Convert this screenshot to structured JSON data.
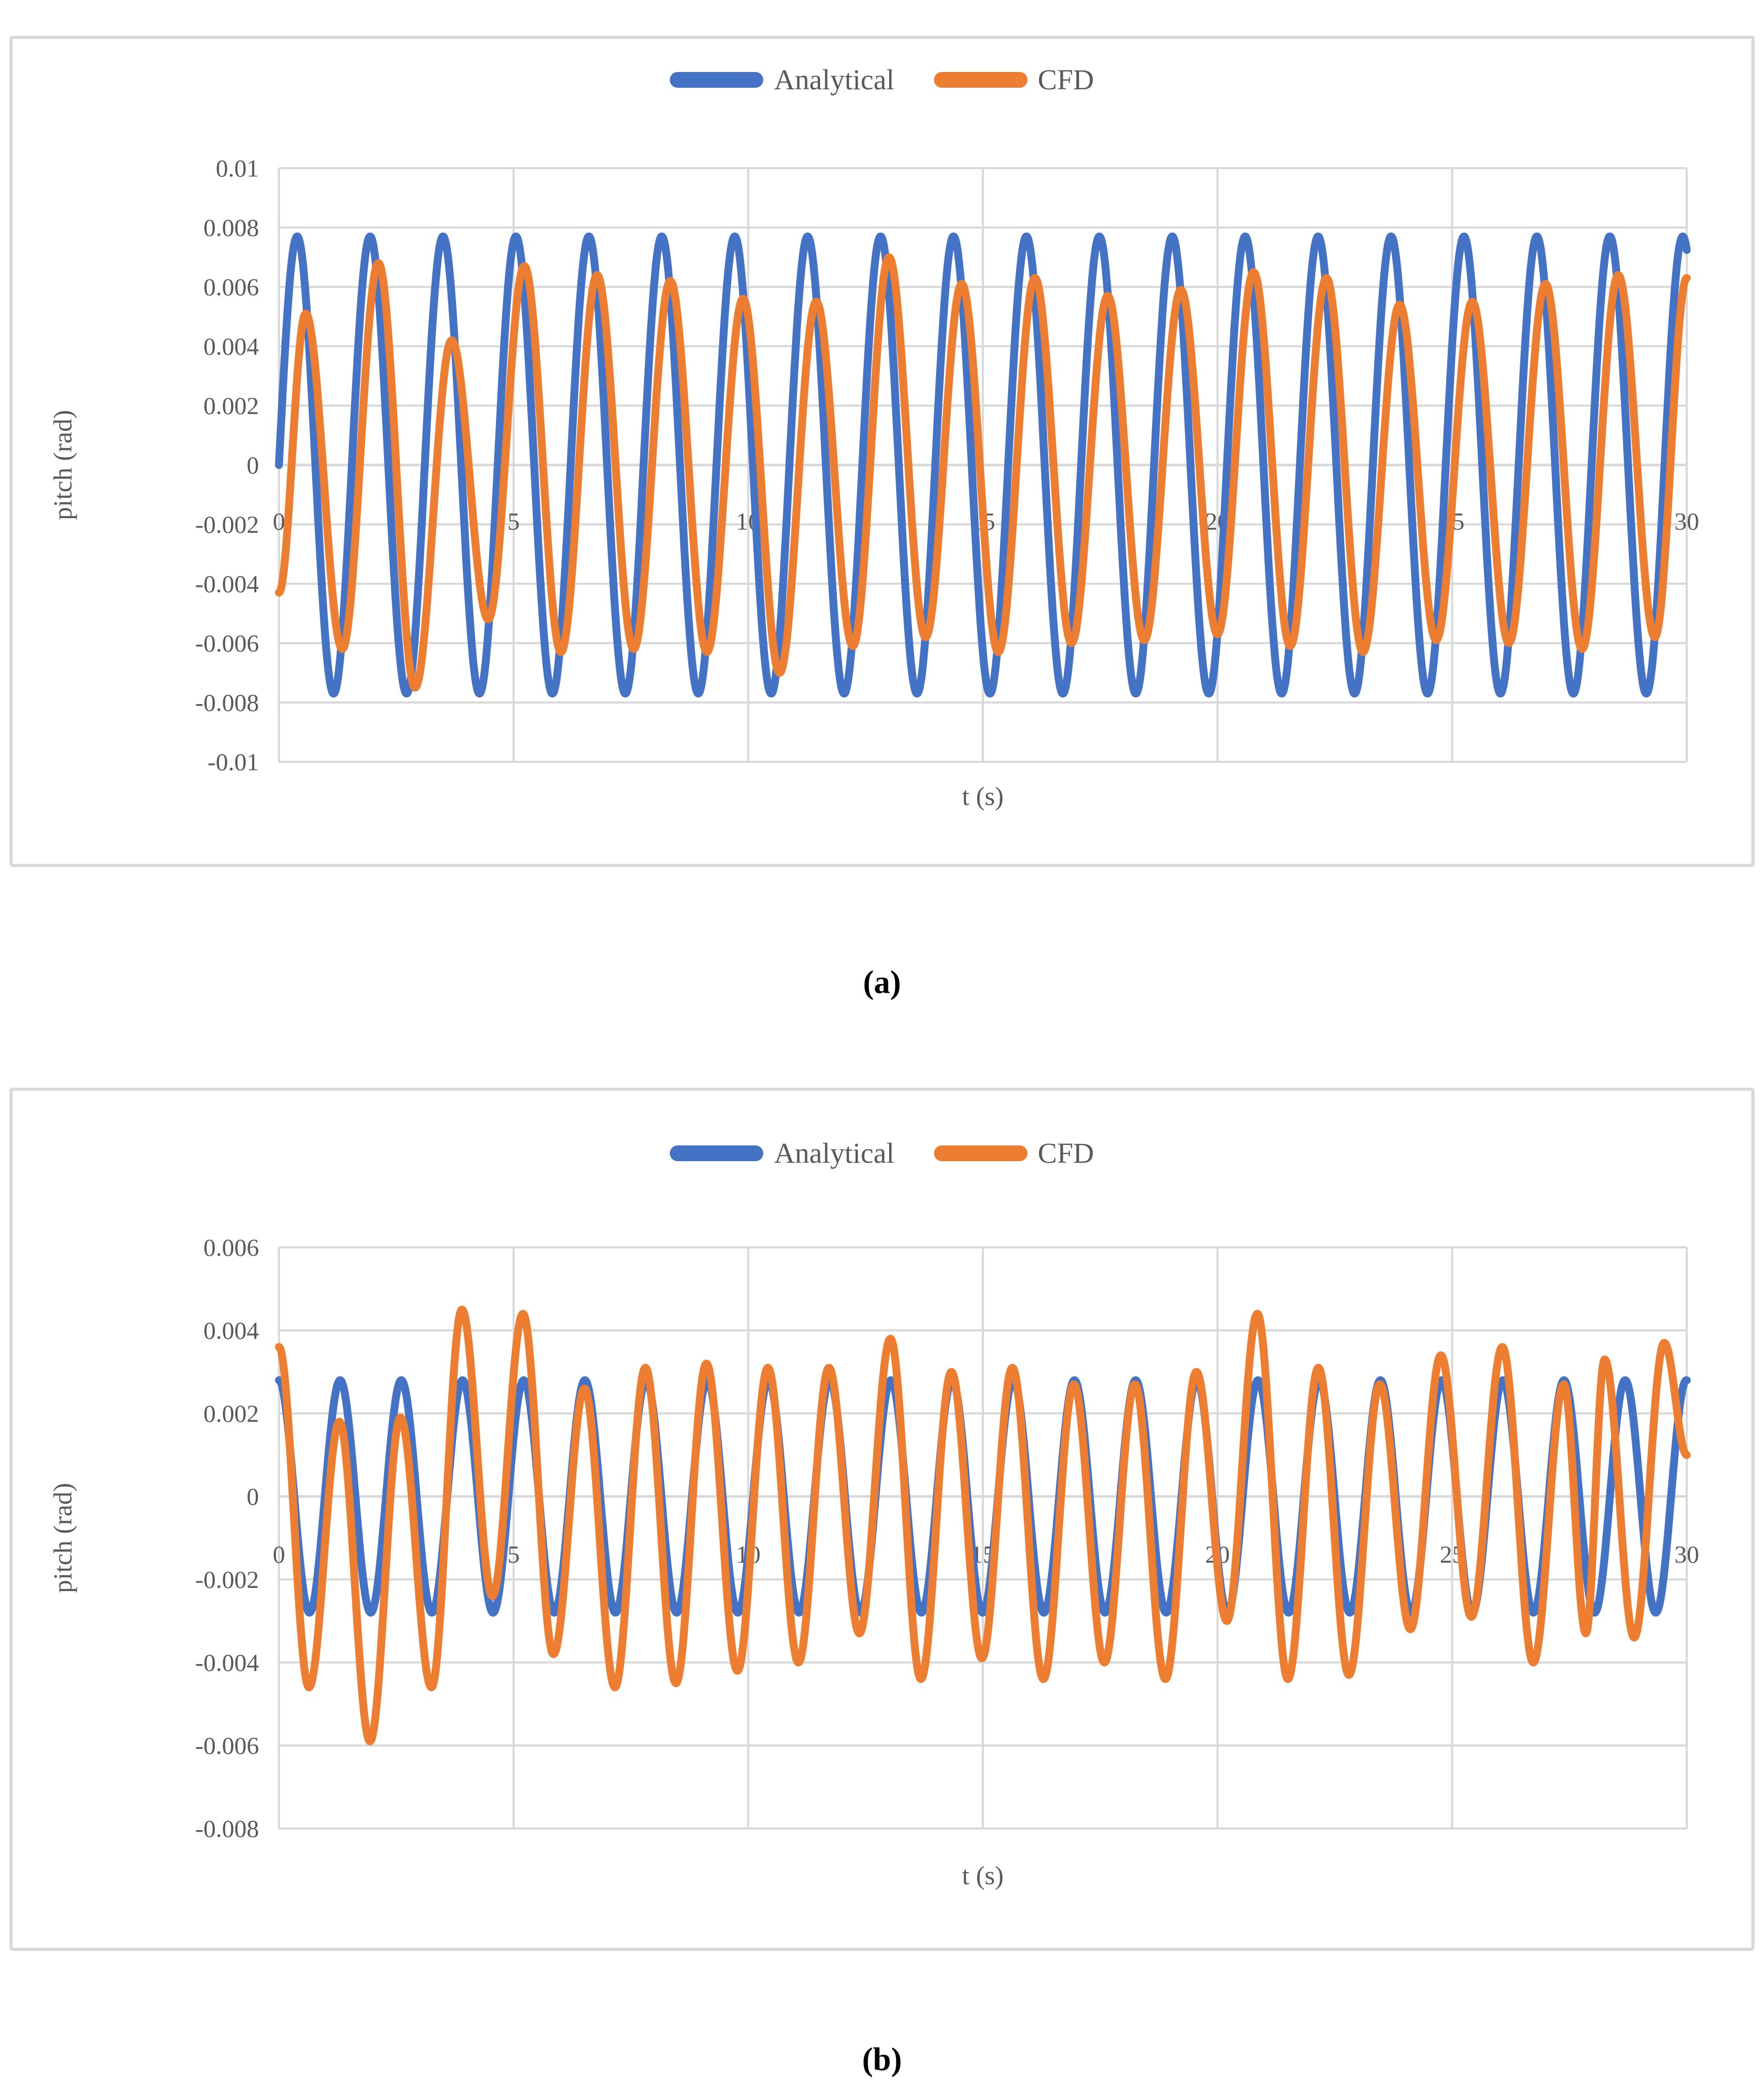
{
  "colors": {
    "analytical": "#4472C4",
    "cfd": "#ED7D31",
    "grid": "#D9D9D9",
    "axis_text": "#595959",
    "caption_text": "#000000",
    "chart_border": "#D9D9D9"
  },
  "legend": {
    "items": [
      {
        "label": "Analytical",
        "color_key": "analytical"
      },
      {
        "label": "CFD",
        "color_key": "cfd"
      }
    ]
  },
  "captions": {
    "a": "(a)",
    "b": "(b)"
  },
  "chart_data": [
    {
      "id": "a",
      "type": "line",
      "title": "",
      "xlabel": "t (s)",
      "ylabel": "pitch (rad)",
      "grid": true,
      "legend_position": "top",
      "x_axis": {
        "min": 0,
        "max": 30,
        "tick_step": 5,
        "tick_labels": [
          "0",
          "5",
          "10",
          "15",
          "20",
          "25",
          "30"
        ]
      },
      "y_axis": {
        "min": -0.01,
        "max": 0.01,
        "tick_step": 0.002,
        "tick_labels": [
          "0.01",
          "0.008",
          "0.006",
          "0.004",
          "0.002",
          "0",
          "-0.002",
          "-0.004",
          "-0.006",
          "-0.008",
          "-0.01"
        ]
      },
      "series": [
        {
          "name": "Analytical",
          "color_key": "analytical",
          "model": "sine",
          "amplitude": 0.0077,
          "period": 1.554,
          "peak_time": 0.3885
        },
        {
          "name": "CFD",
          "color_key": "cfd",
          "model": "extrema",
          "points": [
            [
              0,
              -0.0043
            ],
            [
              0.57,
              0.0051
            ],
            [
              1.35,
              -0.0062
            ],
            [
              2.12,
              0.0068
            ],
            [
              2.9,
              -0.0075
            ],
            [
              3.68,
              0.0042
            ],
            [
              4.46,
              -0.0052
            ],
            [
              5.23,
              0.0067
            ],
            [
              6.01,
              -0.0063
            ],
            [
              6.78,
              0.0064
            ],
            [
              7.56,
              -0.0062
            ],
            [
              8.34,
              0.0062
            ],
            [
              9.12,
              -0.0063
            ],
            [
              9.89,
              0.0056
            ],
            [
              10.67,
              -0.007
            ],
            [
              11.45,
              0.0055
            ],
            [
              12.23,
              -0.0061
            ],
            [
              13.0,
              0.007
            ],
            [
              13.78,
              -0.0058
            ],
            [
              14.55,
              0.0061
            ],
            [
              15.33,
              -0.0063
            ],
            [
              16.11,
              0.0063
            ],
            [
              16.89,
              -0.006
            ],
            [
              17.66,
              0.0057
            ],
            [
              18.44,
              -0.0059
            ],
            [
              19.22,
              0.0059
            ],
            [
              20.0,
              -0.0057
            ],
            [
              20.77,
              0.0065
            ],
            [
              21.55,
              -0.0061
            ],
            [
              22.32,
              0.0063
            ],
            [
              23.1,
              -0.0063
            ],
            [
              23.88,
              0.0054
            ],
            [
              24.66,
              -0.0059
            ],
            [
              25.43,
              0.0055
            ],
            [
              26.21,
              -0.006
            ],
            [
              26.99,
              0.0061
            ],
            [
              27.77,
              -0.0062
            ],
            [
              28.54,
              0.0064
            ],
            [
              29.32,
              -0.0058
            ],
            [
              30,
              0.0063
            ]
          ]
        }
      ]
    },
    {
      "id": "b",
      "type": "line",
      "title": "",
      "xlabel": "t (s)",
      "ylabel": "pitch (rad)",
      "grid": true,
      "legend_position": "top",
      "x_axis": {
        "min": 0,
        "max": 30,
        "tick_step": 5,
        "tick_labels": [
          "0",
          "5",
          "10",
          "15",
          "20",
          "25",
          "30"
        ]
      },
      "y_axis": {
        "min": -0.008,
        "max": 0.006,
        "tick_step": 0.002,
        "tick_labels": [
          "0.006",
          "0.004",
          "0.002",
          "0",
          "-0.002",
          "-0.004",
          "-0.006",
          "-0.008"
        ]
      },
      "series": [
        {
          "name": "Analytical",
          "color_key": "analytical",
          "model": "sine",
          "amplitude": 0.0028,
          "period": 1.304,
          "peak_time": 0
        },
        {
          "name": "CFD",
          "color_key": "cfd",
          "model": "extrema",
          "points": [
            [
              0,
              0.0036
            ],
            [
              0.64,
              -0.0046
            ],
            [
              1.29,
              0.0018
            ],
            [
              1.94,
              -0.0059
            ],
            [
              2.59,
              0.0019
            ],
            [
              3.25,
              -0.0046
            ],
            [
              3.9,
              0.0045
            ],
            [
              4.55,
              -0.0024
            ],
            [
              5.2,
              0.0044
            ],
            [
              5.85,
              -0.0038
            ],
            [
              6.51,
              0.0026
            ],
            [
              7.16,
              -0.0046
            ],
            [
              7.81,
              0.0031
            ],
            [
              8.46,
              -0.0045
            ],
            [
              9.11,
              0.0032
            ],
            [
              9.77,
              -0.0042
            ],
            [
              10.42,
              0.0031
            ],
            [
              11.07,
              -0.004
            ],
            [
              11.72,
              0.0031
            ],
            [
              12.37,
              -0.0033
            ],
            [
              13.03,
              0.0038
            ],
            [
              13.68,
              -0.0044
            ],
            [
              14.33,
              0.003
            ],
            [
              14.98,
              -0.0039
            ],
            [
              15.63,
              0.0031
            ],
            [
              16.29,
              -0.0044
            ],
            [
              16.94,
              0.0027
            ],
            [
              17.59,
              -0.004
            ],
            [
              18.24,
              0.0027
            ],
            [
              18.89,
              -0.0044
            ],
            [
              19.55,
              0.003
            ],
            [
              20.2,
              -0.003
            ],
            [
              20.85,
              0.0044
            ],
            [
              21.5,
              -0.0044
            ],
            [
              22.15,
              0.0031
            ],
            [
              22.8,
              -0.0043
            ],
            [
              23.46,
              0.0027
            ],
            [
              24.11,
              -0.0032
            ],
            [
              24.76,
              0.0034
            ],
            [
              25.41,
              -0.0029
            ],
            [
              26.07,
              0.0036
            ],
            [
              26.73,
              -0.004
            ],
            [
              27.38,
              0.0027
            ],
            [
              27.85,
              -0.0033
            ],
            [
              28.25,
              0.0033
            ],
            [
              28.88,
              -0.0034
            ],
            [
              29.52,
              0.0037
            ],
            [
              30,
              0.001
            ]
          ]
        }
      ]
    }
  ]
}
